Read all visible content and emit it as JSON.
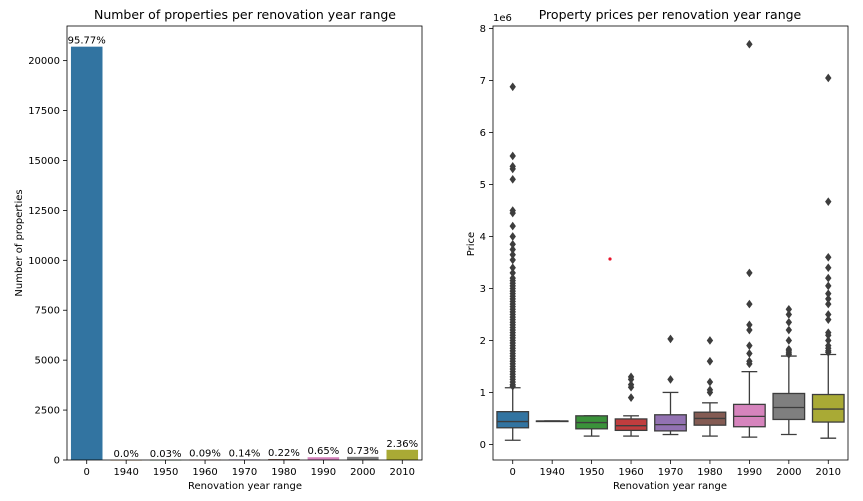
{
  "chart_data": [
    {
      "type": "bar",
      "title": "Number of properties per renovation year range",
      "xlabel": "Renovation year range",
      "ylabel": "Number of properties",
      "categories": [
        "0",
        "1940",
        "1950",
        "1960",
        "1970",
        "1980",
        "1990",
        "2000",
        "2010"
      ],
      "values": [
        20699,
        1,
        6,
        19,
        30,
        48,
        140,
        158,
        510
      ],
      "data_labels": [
        "95.77%",
        "0.0%",
        "0.03%",
        "0.09%",
        "0.14%",
        "0.22%",
        "0.65%",
        "0.73%",
        "2.36%"
      ],
      "colors": [
        "#3274a1",
        "#e1812c",
        "#3a923a",
        "#c03d3e",
        "#9372b2",
        "#845b53",
        "#d684bd",
        "#7f7f7f",
        "#a9aa35"
      ],
      "yticks": [
        0,
        2500,
        5000,
        7500,
        10000,
        12500,
        15000,
        17500,
        20000
      ],
      "ylim": [
        0,
        21734
      ],
      "grid": false
    },
    {
      "type": "box",
      "title": "Property prices per renovation year range",
      "xlabel": "Renovation year range",
      "ylabel": "Price",
      "y_scale_label": "1e6",
      "categories": [
        "0",
        "1940",
        "1950",
        "1960",
        "1970",
        "1980",
        "1990",
        "2000",
        "2010"
      ],
      "colors": [
        "#3274a1",
        "#e1812c",
        "#3a923a",
        "#c03d3e",
        "#9372b2",
        "#845b53",
        "#d684bd",
        "#7f7f7f",
        "#a9aa35"
      ],
      "boxes": [
        {
          "q1": 0.32,
          "median": 0.44,
          "q3": 0.63,
          "whislo": 0.08,
          "whishi": 1.09,
          "fliers": [
            1.12,
            1.15,
            1.2,
            1.25,
            1.3,
            1.35,
            1.4,
            1.45,
            1.5,
            1.55,
            1.6,
            1.65,
            1.7,
            1.75,
            1.8,
            1.85,
            1.9,
            1.95,
            2.0,
            2.05,
            2.1,
            2.15,
            2.2,
            2.25,
            2.3,
            2.35,
            2.4,
            2.45,
            2.5,
            2.55,
            2.6,
            2.65,
            2.7,
            2.75,
            2.8,
            2.85,
            2.9,
            2.95,
            3.0,
            3.05,
            3.1,
            3.15,
            3.2,
            3.3,
            3.4,
            3.55,
            3.65,
            3.75,
            3.85,
            4.0,
            4.2,
            4.45,
            4.5,
            5.1,
            5.3,
            5.35,
            5.55,
            6.88
          ]
        },
        {
          "q1": 0.45,
          "median": 0.45,
          "q3": 0.45,
          "whislo": 0.45,
          "whishi": 0.45,
          "fliers": []
        },
        {
          "q1": 0.3,
          "median": 0.42,
          "q3": 0.55,
          "whislo": 0.16,
          "whishi": 0.55,
          "fliers": []
        },
        {
          "q1": 0.27,
          "median": 0.36,
          "q3": 0.49,
          "whislo": 0.16,
          "whishi": 0.55,
          "fliers": [
            0.9,
            1.1,
            1.15,
            1.25,
            1.3
          ]
        },
        {
          "q1": 0.26,
          "median": 0.38,
          "q3": 0.57,
          "whislo": 0.19,
          "whishi": 1.0,
          "fliers": [
            1.25,
            2.03
          ]
        },
        {
          "q1": 0.37,
          "median": 0.5,
          "q3": 0.62,
          "whislo": 0.16,
          "whishi": 0.8,
          "fliers": [
            1.0,
            1.05,
            1.2,
            1.6,
            2.0
          ]
        },
        {
          "q1": 0.34,
          "median": 0.54,
          "q3": 0.77,
          "whislo": 0.14,
          "whishi": 1.4,
          "fliers": [
            1.55,
            1.6,
            1.75,
            1.9,
            2.2,
            2.3,
            2.7,
            3.3,
            7.7
          ]
        },
        {
          "q1": 0.48,
          "median": 0.71,
          "q3": 0.98,
          "whislo": 0.19,
          "whishi": 1.7,
          "fliers": [
            1.73,
            1.76,
            1.8,
            1.83,
            2.0,
            2.2,
            2.35,
            2.5,
            2.6
          ]
        },
        {
          "q1": 0.43,
          "median": 0.68,
          "q3": 0.96,
          "whislo": 0.12,
          "whishi": 1.73,
          "fliers": [
            1.77,
            1.8,
            1.85,
            1.9,
            2.0,
            2.1,
            2.15,
            2.4,
            2.5,
            2.7,
            2.8,
            2.9,
            3.05,
            3.2,
            3.4,
            3.6,
            4.67,
            7.05
          ]
        }
      ],
      "yticks": [
        0,
        1,
        2,
        3,
        4,
        5,
        6,
        7,
        8
      ],
      "ylim": [
        -0.3,
        8.05
      ],
      "grid": false
    }
  ]
}
